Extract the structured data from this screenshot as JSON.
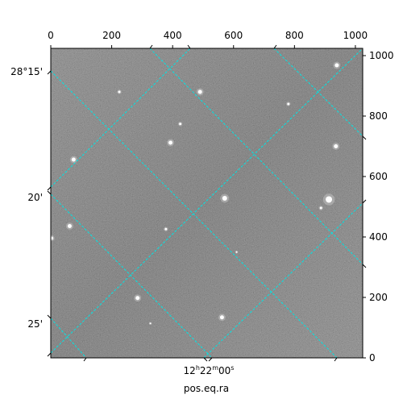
{
  "chart_data": {
    "type": "scatter",
    "title": "",
    "image": {
      "description_colors": {
        "background": "#5a5a5a",
        "grid": "#00e5e5",
        "stars": "#ffffff"
      }
    },
    "pixel_axes": {
      "x_range": [
        0,
        1024
      ],
      "y_range": [
        0,
        1024
      ],
      "x_ticks": [
        0,
        200,
        400,
        600,
        800,
        1000
      ],
      "y_ticks": [
        0,
        200,
        400,
        600,
        800,
        1000
      ]
    },
    "world_axes": {
      "dec_labels": [
        "28°15'",
        "20'",
        "25'"
      ],
      "ra_labels": [
        {
          "h": "12",
          "hs": "h",
          "m": "22",
          "ms": "m",
          "s": "00",
          "ss": "s"
        }
      ],
      "xlabel": "pos.eq.ra"
    },
    "stars": [
      {
        "x": 939,
        "y": 968,
        "r": 2.5
      },
      {
        "x": 225,
        "y": 880,
        "r": 1.5
      },
      {
        "x": 490,
        "y": 880,
        "r": 2.5
      },
      {
        "x": 780,
        "y": 840,
        "r": 1.5
      },
      {
        "x": 425,
        "y": 774,
        "r": 1.5
      },
      {
        "x": 393,
        "y": 712,
        "r": 2.5
      },
      {
        "x": 936,
        "y": 700,
        "r": 2.5
      },
      {
        "x": 75,
        "y": 656,
        "r": 2.5
      },
      {
        "x": 571,
        "y": 528,
        "r": 3.0
      },
      {
        "x": 913,
        "y": 524,
        "r": 4.0
      },
      {
        "x": 887,
        "y": 496,
        "r": 1.5
      },
      {
        "x": 62,
        "y": 436,
        "r": 2.5
      },
      {
        "x": 378,
        "y": 426,
        "r": 1.5
      },
      {
        "x": 3,
        "y": 396,
        "r": 2.0
      },
      {
        "x": 285,
        "y": 198,
        "r": 2.5
      },
      {
        "x": 562,
        "y": 134,
        "r": 2.5
      },
      {
        "x": 327,
        "y": 114,
        "r": 1.0
      },
      {
        "x": 610,
        "y": 350,
        "r": 1.0
      }
    ]
  }
}
